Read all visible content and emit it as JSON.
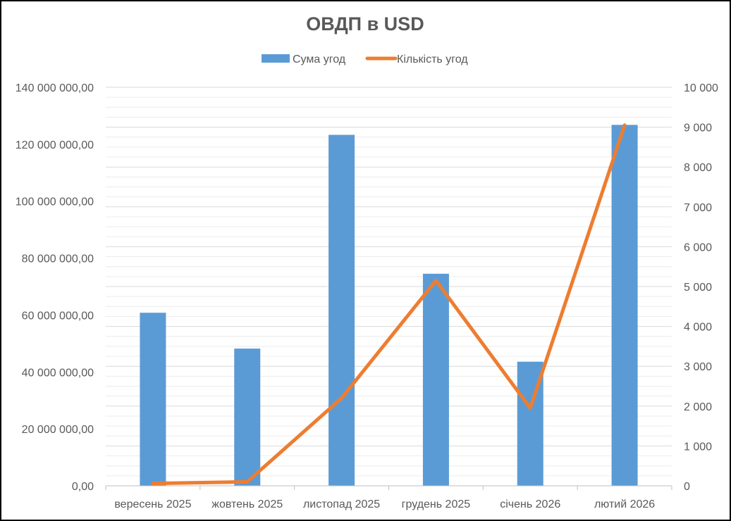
{
  "chart_data": {
    "type": "bar",
    "title": "ОВДП в USD",
    "categories": [
      "вересень 2025",
      "жовтень 2025",
      "листопад 2025",
      "грудень 2025",
      "січень 2026",
      "лютий 2026"
    ],
    "series": [
      {
        "name": "Сума угод",
        "type": "bar",
        "axis": "left",
        "color": "#5b9bd5",
        "values": [
          60800000,
          48200000,
          123300000,
          74500000,
          43600000,
          126800000
        ]
      },
      {
        "name": "Кількість угод",
        "type": "line",
        "axis": "right",
        "color": "#ed7d31",
        "values": [
          60,
          100,
          2200,
          5150,
          1950,
          9050
        ]
      }
    ],
    "y_left": {
      "min": 0,
      "max": 140000000,
      "ticks": [
        0,
        20000000,
        40000000,
        60000000,
        80000000,
        100000000,
        120000000,
        140000000
      ],
      "tick_labels": [
        "0,00",
        "20 000 000,00",
        "40 000 000,00",
        "60 000 000,00",
        "80 000 000,00",
        "100 000 000,00",
        "120 000 000,00",
        "140 000 000,00"
      ]
    },
    "y_right": {
      "min": 0,
      "max": 10000,
      "ticks": [
        0,
        1000,
        2000,
        3000,
        4000,
        5000,
        6000,
        7000,
        8000,
        9000,
        10000
      ],
      "tick_labels": [
        "0",
        "1 000",
        "2 000",
        "3 000",
        "4 000",
        "5 000",
        "6 000",
        "7 000",
        "8 000",
        "9 000",
        "10 000"
      ]
    },
    "legend": "top",
    "grid": true
  }
}
